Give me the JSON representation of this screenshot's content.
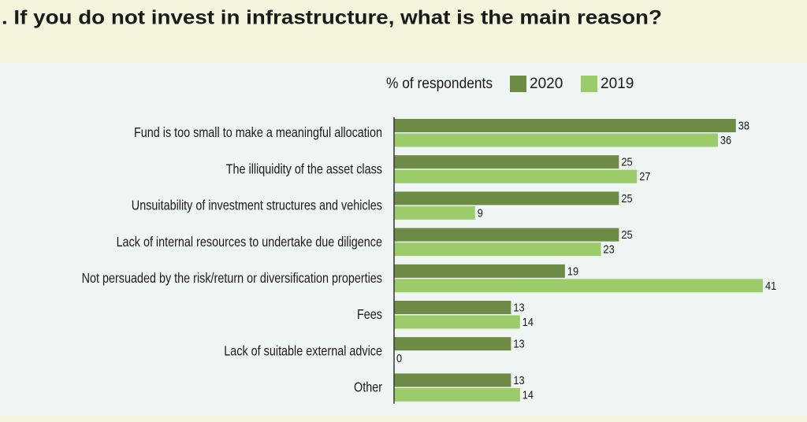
{
  "chart_data": {
    "type": "hbar",
    "title": ". If you do not invest in infrastructure, what is the main reason?",
    "legend_title": "% of respondents",
    "categories": [
      "Fund is too small to make a meaningful allocation",
      "The illiquidity of the asset class",
      "Unsuitability of investment structures and vehicles",
      "Lack of internal resources to undertake due diligence",
      "Not persuaded by the risk/return or diversification properties",
      "Fees",
      "Lack of suitable external advice",
      "Other"
    ],
    "series": [
      {
        "name": "2020",
        "color": "#6e8b46",
        "values": [
          38,
          25,
          25,
          25,
          19,
          13,
          13,
          13
        ]
      },
      {
        "name": "2019",
        "color": "#9ccb6a",
        "values": [
          36,
          27,
          9,
          23,
          41,
          14,
          0,
          14
        ]
      }
    ]
  }
}
